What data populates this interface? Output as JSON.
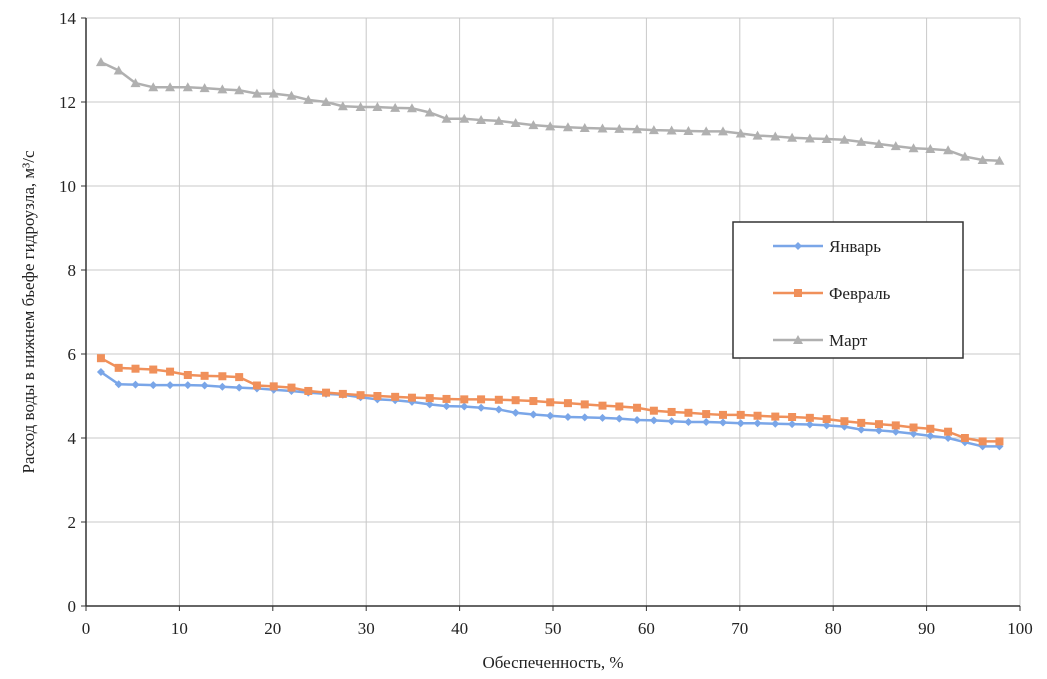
{
  "chart_data": {
    "type": "line",
    "ylabel": "Расход воды в нижнем бьефе гидроузла, м³/с",
    "xlabel": "Обеспеченность, %",
    "xlim": [
      0,
      100
    ],
    "xticks": [
      0,
      10,
      20,
      30,
      40,
      50,
      60,
      70,
      80,
      90,
      100
    ],
    "ylim": [
      0,
      14
    ],
    "yticks": [
      0,
      2,
      4,
      6,
      8,
      10,
      12,
      14
    ],
    "grid": true,
    "legend": "right",
    "x": [
      1.6,
      3.5,
      5.3,
      7.2,
      9.0,
      10.9,
      12.7,
      14.6,
      16.4,
      18.3,
      20.1,
      22.0,
      23.8,
      25.7,
      27.5,
      29.4,
      31.2,
      33.1,
      34.9,
      36.8,
      38.6,
      40.5,
      42.3,
      44.2,
      46.0,
      47.9,
      49.7,
      51.6,
      53.4,
      55.3,
      57.1,
      59.0,
      60.8,
      62.7,
      64.5,
      66.4,
      68.2,
      70.1,
      71.9,
      73.8,
      75.6,
      77.5,
      79.3,
      81.2,
      83.0,
      84.9,
      86.7,
      88.6,
      90.4,
      92.3,
      94.1,
      96.0,
      97.8
    ],
    "series": [
      {
        "name": "Январь",
        "color": "#7aa6e8",
        "marker": "diamond",
        "values": [
          5.57,
          5.28,
          5.27,
          5.26,
          5.26,
          5.26,
          5.25,
          5.22,
          5.2,
          5.18,
          5.15,
          5.12,
          5.08,
          5.05,
          5.03,
          4.97,
          4.92,
          4.9,
          4.86,
          4.8,
          4.76,
          4.75,
          4.72,
          4.68,
          4.6,
          4.56,
          4.53,
          4.5,
          4.49,
          4.48,
          4.46,
          4.43,
          4.42,
          4.4,
          4.38,
          4.38,
          4.37,
          4.35,
          4.35,
          4.34,
          4.33,
          4.32,
          4.3,
          4.27,
          4.2,
          4.18,
          4.15,
          4.1,
          4.05,
          4.0,
          3.9,
          3.8,
          3.8
        ]
      },
      {
        "name": "Февраль",
        "color": "#f0905a",
        "marker": "square",
        "values": [
          5.9,
          5.67,
          5.65,
          5.63,
          5.58,
          5.5,
          5.48,
          5.47,
          5.45,
          5.25,
          5.23,
          5.2,
          5.12,
          5.08,
          5.05,
          5.02,
          5.0,
          4.98,
          4.96,
          4.95,
          4.93,
          4.92,
          4.92,
          4.91,
          4.9,
          4.88,
          4.85,
          4.83,
          4.8,
          4.77,
          4.75,
          4.72,
          4.65,
          4.62,
          4.6,
          4.57,
          4.55,
          4.55,
          4.53,
          4.51,
          4.5,
          4.48,
          4.45,
          4.4,
          4.36,
          4.33,
          4.3,
          4.25,
          4.22,
          4.15,
          4.0,
          3.92,
          3.92
        ]
      },
      {
        "name": "Март",
        "color": "#b0b0b0",
        "marker": "triangle",
        "values": [
          12.95,
          12.75,
          12.45,
          12.35,
          12.35,
          12.35,
          12.33,
          12.3,
          12.28,
          12.2,
          12.2,
          12.15,
          12.05,
          12.0,
          11.9,
          11.88,
          11.88,
          11.86,
          11.85,
          11.75,
          11.6,
          11.6,
          11.57,
          11.55,
          11.5,
          11.45,
          11.42,
          11.4,
          11.38,
          11.37,
          11.36,
          11.35,
          11.33,
          11.32,
          11.31,
          11.3,
          11.3,
          11.25,
          11.2,
          11.18,
          11.15,
          11.13,
          11.12,
          11.1,
          11.05,
          11.0,
          10.95,
          10.9,
          10.88,
          10.85,
          10.7,
          10.62,
          10.6
        ]
      }
    ]
  }
}
